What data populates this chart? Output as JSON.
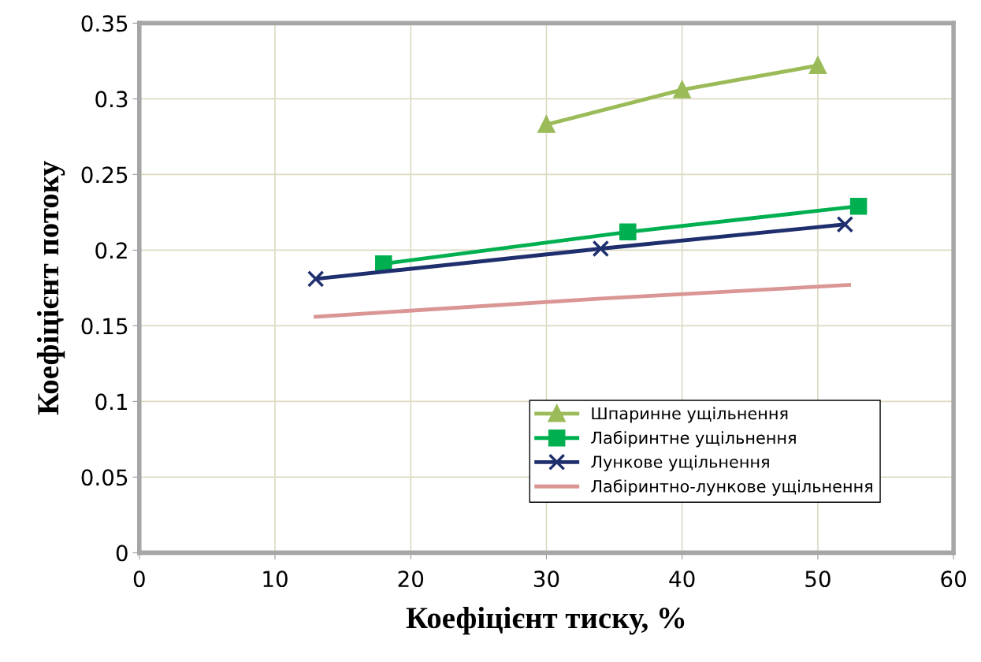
{
  "chart_data": {
    "type": "line",
    "xlabel": "Коефіцієнт тиску, %",
    "ylabel": "Коефіцієнт потоку",
    "xlim": [
      0,
      60
    ],
    "xticks": [
      0,
      10,
      20,
      30,
      40,
      50,
      60
    ],
    "ylim": [
      0,
      0.35
    ],
    "yticks": [
      0,
      0.05,
      0.1,
      0.15,
      0.2,
      0.25,
      0.3,
      0.35
    ],
    "grid": true,
    "legend": "bottom right",
    "series": [
      {
        "name": "Шпаринне ущільнення",
        "color": "#9bbb59",
        "marker": "triangle",
        "x": [
          30,
          40,
          50
        ],
        "values": [
          0.283,
          0.306,
          0.322
        ]
      },
      {
        "name": "Лабіринтне ущільнення",
        "color": "#00b050",
        "marker": "square",
        "x": [
          18,
          36,
          53
        ],
        "values": [
          0.191,
          0.212,
          0.229
        ]
      },
      {
        "name": "Лункове ущільнення",
        "color": "#1f2f6e",
        "marker": "cross",
        "x": [
          13,
          34,
          52
        ],
        "values": [
          0.181,
          0.201,
          0.217
        ]
      },
      {
        "name": "Лабіринтно-лункове ущільнення",
        "color": "#d99694",
        "marker": "none",
        "x": [
          13,
          34,
          52.3
        ],
        "values": [
          0.156,
          0.168,
          0.177
        ]
      }
    ]
  }
}
